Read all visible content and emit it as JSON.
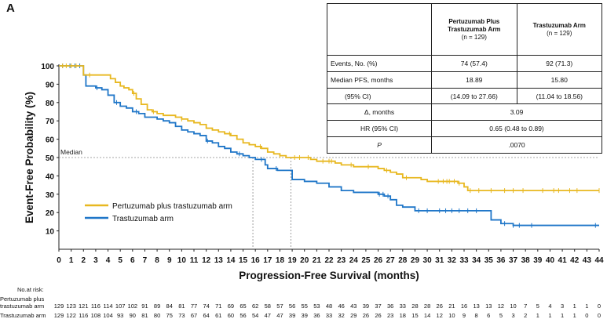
{
  "panel_label": "A",
  "chart_data": {
    "type": "line",
    "title": "",
    "xlabel": "Progression-Free Survival (months)",
    "ylabel": "Event-Free Probability (%)",
    "xlim": [
      0,
      44
    ],
    "ylim": [
      0,
      100
    ],
    "x_ticks": [
      "0",
      "1",
      "2",
      "3",
      "4",
      "5",
      "6",
      "7",
      "8",
      "9",
      "10",
      "11",
      "12",
      "13",
      "14",
      "15",
      "16",
      "17",
      "18",
      "19",
      "20",
      "21",
      "22",
      "23",
      "24",
      "25",
      "26",
      "27",
      "28",
      "29",
      "30",
      "31",
      "32",
      "33",
      "34",
      "35",
      "36",
      "37",
      "38",
      "39",
      "40",
      "41",
      "42",
      "43",
      "44"
    ],
    "y_ticks": [
      "10",
      "20",
      "30",
      "40",
      "50",
      "60",
      "70",
      "80",
      "90",
      "100"
    ],
    "grid": false,
    "legend_position": "lower-left",
    "median_line": {
      "label": "Median",
      "y": 50,
      "x_values": [
        15.8,
        18.89
      ]
    },
    "series": [
      {
        "name": "Pertuzumab plus trastuzumab arm",
        "color": "#e8b820",
        "x": [
          0,
          1.8,
          2,
          2.4,
          2.9,
          3.3,
          3.8,
          4.2,
          4.6,
          5,
          5.3,
          5.7,
          6,
          6.3,
          6.7,
          7.2,
          7.6,
          8,
          8.5,
          9,
          9.5,
          10,
          10.5,
          11,
          11.5,
          12,
          12.5,
          13,
          13.5,
          14,
          14.5,
          15,
          15.5,
          16,
          16.5,
          17,
          17.5,
          18,
          18.5,
          19,
          20,
          20.5,
          21,
          22,
          22.5,
          23,
          24,
          25,
          26,
          26.5,
          27,
          27.5,
          28,
          28.5,
          29,
          29.5,
          30,
          31,
          32,
          32.5,
          33,
          33.3,
          34,
          44
        ],
        "y": [
          100,
          100,
          95,
          95,
          95,
          95,
          95,
          93,
          91,
          89,
          88,
          87,
          85,
          82,
          79,
          76,
          75,
          74,
          73,
          73,
          72,
          71,
          70,
          69,
          68,
          66,
          65,
          64,
          63,
          62,
          60,
          58,
          57,
          56,
          55,
          53,
          52,
          51,
          50,
          50,
          50,
          49,
          48,
          48,
          47,
          46,
          45,
          45,
          44,
          43,
          42,
          41,
          39,
          39,
          39,
          38,
          37,
          37,
          37,
          36,
          34,
          32,
          32,
          32
        ],
        "censor_x": [
          0.3,
          0.6,
          1,
          1.4,
          2.5,
          6.1,
          7.7,
          10,
          13.9,
          16.4,
          18,
          19.2,
          19.6,
          20.3,
          21.5,
          22,
          22.2,
          23.8,
          25.2,
          26.7,
          28.3,
          30.9,
          31.3,
          31.6,
          31.8,
          32.2,
          32.6,
          33.5,
          34.2,
          35.2,
          36.3,
          37,
          37.8,
          39.4,
          40.3,
          40.7,
          41.6,
          42.2,
          44
        ]
      },
      {
        "name": "Trastuzumab arm",
        "color": "#1f76c8",
        "x": [
          0,
          2,
          2.2,
          3,
          3.5,
          4,
          4.5,
          5,
          5.5,
          6,
          6.5,
          7,
          7.5,
          8,
          8.5,
          9,
          9.5,
          10,
          10.5,
          11,
          11.5,
          12,
          12.5,
          13,
          13.5,
          14,
          14.5,
          15,
          15.5,
          16,
          16.8,
          17,
          17.8,
          18.5,
          19,
          19.5,
          20,
          21,
          22,
          23,
          24,
          25,
          26,
          26.5,
          27,
          27.5,
          28,
          29,
          30,
          31,
          32,
          33,
          34,
          35,
          35.2,
          36,
          37,
          44
        ],
        "y": [
          100,
          95,
          89,
          88,
          87,
          84,
          80,
          78,
          77,
          75,
          74,
          72,
          72,
          71,
          70,
          69,
          67,
          65,
          64,
          63,
          62,
          59,
          58,
          56,
          55,
          53,
          52,
          51,
          50,
          49,
          46,
          44,
          43,
          43,
          38,
          38,
          37,
          36,
          34,
          32,
          31,
          31,
          30,
          29,
          27,
          24,
          23,
          21,
          21,
          21,
          21,
          21,
          21,
          21,
          16,
          14,
          13,
          13
        ],
        "censor_x": [
          0.3,
          0.9,
          1.3,
          1.7,
          3.1,
          4.7,
          6.3,
          12.1,
          14.7,
          16.5,
          17.7,
          26.1,
          26.4,
          26.8,
          29.3,
          30,
          31,
          31.5,
          32,
          32.6,
          33.3,
          34,
          36.3,
          37,
          37.5,
          38.5,
          43.7
        ]
      }
    ]
  },
  "stats_table": {
    "header": {
      "col1": "Pertuzumab Plus Trastuzumab Arm",
      "col1_n": "(n = 129)",
      "col2": "Trastuzumab Arm",
      "col2_n": "(n = 129)"
    },
    "rows": {
      "events": {
        "label": "Events, No. (%)",
        "v1": "74 (57.4)",
        "v2": "92 (71.3)"
      },
      "median": {
        "label": "Median PFS, months",
        "v1": "18.89",
        "v2": "15.80"
      },
      "ci": {
        "label": "(95% CI)",
        "v1": "(14.09 to 27.66)",
        "v2": "(11.04 to 18.56)"
      },
      "delta": {
        "label": "Δ, months",
        "value": "3.09"
      },
      "hr": {
        "label": "HR (95% CI)",
        "value": "0.65 (0.48 to 0.89)"
      },
      "p": {
        "label": "P",
        "value": ".0070"
      }
    }
  },
  "risk_table": {
    "title": "No.at risk:",
    "rows": [
      {
        "label_line1": "Pertuzumab plus",
        "label_line2": "trastuzumab arm",
        "values": [
          129,
          123,
          121,
          116,
          114,
          107,
          102,
          91,
          89,
          84,
          81,
          77,
          74,
          71,
          69,
          65,
          62,
          58,
          57,
          56,
          55,
          53,
          48,
          46,
          43,
          39,
          37,
          36,
          33,
          28,
          28,
          26,
          21,
          16,
          13,
          13,
          12,
          10,
          7,
          5,
          4,
          3,
          1,
          1,
          0
        ]
      },
      {
        "label_line1": "Trastuzumab arm",
        "label_line2": "",
        "values": [
          129,
          122,
          116,
          108,
          104,
          93,
          90,
          81,
          80,
          75,
          73,
          67,
          64,
          61,
          60,
          56,
          54,
          47,
          47,
          39,
          39,
          36,
          33,
          32,
          29,
          26,
          26,
          23,
          18,
          15,
          14,
          12,
          10,
          9,
          8,
          6,
          5,
          3,
          2,
          1,
          1,
          1,
          1,
          0,
          0
        ]
      }
    ]
  }
}
